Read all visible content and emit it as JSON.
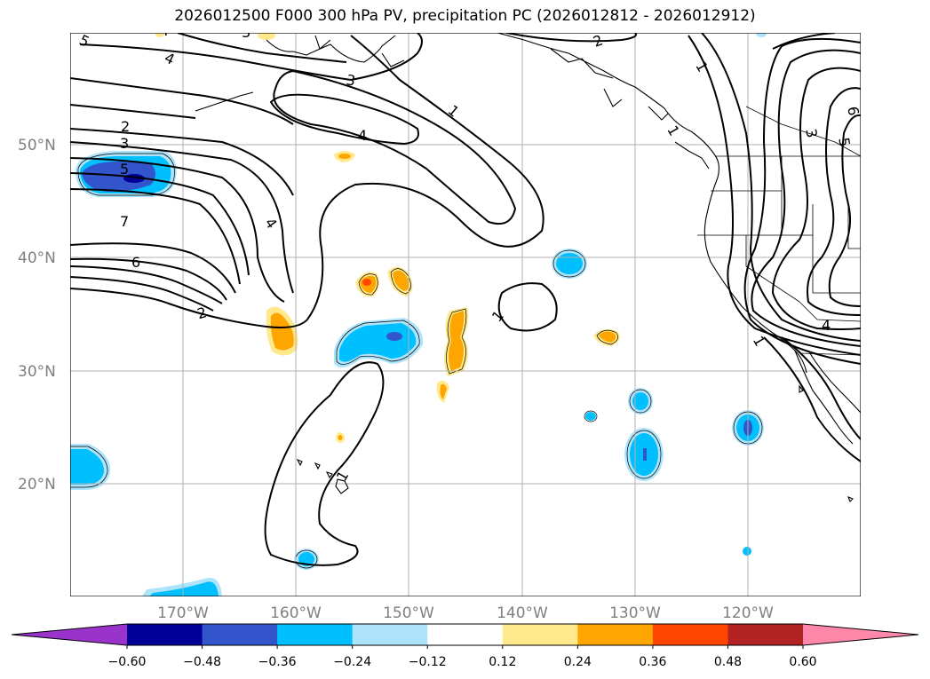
{
  "title": "2026012500 F000 300 hPa PV, precipitation PC (2026012812 - 2026012912)",
  "lat_labels": [
    "50°N",
    "40°N",
    "30°N",
    "20°N"
  ],
  "lon_labels": [
    "170°W",
    "160°W",
    "150°W",
    "140°W",
    "130°W",
    "120°W"
  ],
  "contour_labels": [
    "5",
    "4",
    "3",
    "2",
    "3",
    "1",
    "4",
    "3",
    "5",
    "7",
    "6",
    "4",
    "2",
    "1",
    "1",
    "2",
    "1",
    "3",
    "5",
    "6",
    "4",
    "1",
    "4",
    "1"
  ],
  "colorbar": {
    "ticks": [
      "−0.60",
      "−0.48",
      "−0.36",
      "−0.24",
      "−0.12",
      "0.12",
      "0.24",
      "0.36",
      "0.48",
      "0.60"
    ],
    "colors": [
      "#9933cc",
      "#000099",
      "#3355cc",
      "#00bfff",
      "#aee4fb",
      "#ffffff",
      "#ffe98c",
      "#ffa500",
      "#ff4500",
      "#b22222",
      "#ff88aa"
    ]
  }
}
